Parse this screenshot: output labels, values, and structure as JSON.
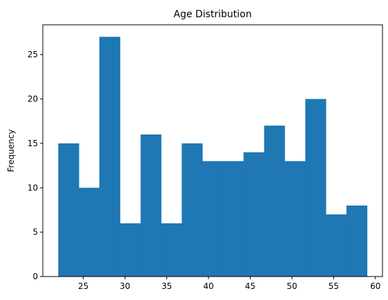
{
  "chart_data": {
    "type": "bar",
    "title": "Age Distribution",
    "xlabel": "",
    "ylabel": "Frequency",
    "bins": [
      {
        "x0": 22.0,
        "x1": 24.47,
        "count": 15
      },
      {
        "x0": 24.47,
        "x1": 26.93,
        "count": 10
      },
      {
        "x0": 26.93,
        "x1": 29.4,
        "count": 27
      },
      {
        "x0": 29.4,
        "x1": 31.87,
        "count": 6
      },
      {
        "x0": 31.87,
        "x1": 34.33,
        "count": 16
      },
      {
        "x0": 34.33,
        "x1": 36.8,
        "count": 6
      },
      {
        "x0": 36.8,
        "x1": 39.27,
        "count": 15
      },
      {
        "x0": 39.27,
        "x1": 41.73,
        "count": 13
      },
      {
        "x0": 41.73,
        "x1": 44.2,
        "count": 13
      },
      {
        "x0": 44.2,
        "x1": 46.67,
        "count": 14
      },
      {
        "x0": 46.67,
        "x1": 49.13,
        "count": 17
      },
      {
        "x0": 49.13,
        "x1": 51.6,
        "count": 13
      },
      {
        "x0": 51.6,
        "x1": 54.07,
        "count": 20
      },
      {
        "x0": 54.07,
        "x1": 56.53,
        "count": 7
      },
      {
        "x0": 56.53,
        "x1": 59.0,
        "count": 8
      }
    ],
    "xlim": [
      20.15,
      60.85
    ],
    "ylim": [
      0,
      28.35
    ],
    "xticks": [
      25,
      30,
      35,
      40,
      45,
      50,
      55,
      60
    ],
    "yticks": [
      0,
      5,
      10,
      15,
      20,
      25
    ],
    "bar_color": "#1f77b4",
    "grid": false,
    "legend": "none"
  }
}
